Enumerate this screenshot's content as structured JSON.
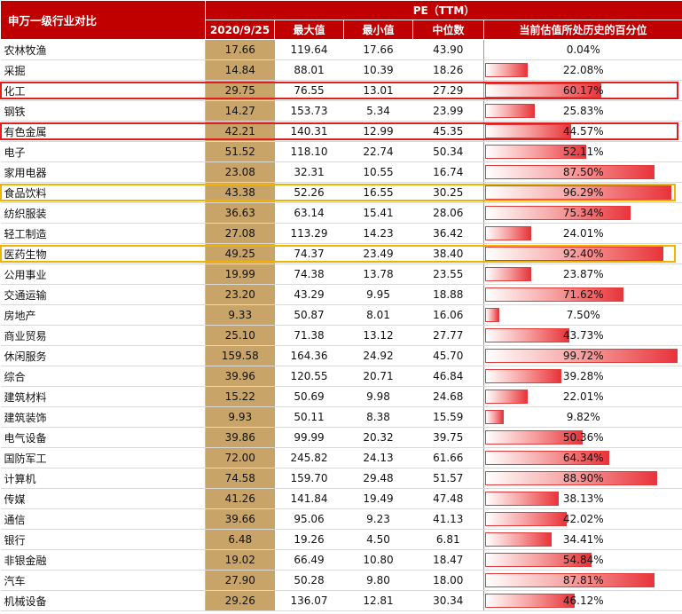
{
  "header": {
    "title": "申万一级行业对比",
    "group_label": "PE（TTM）",
    "columns": [
      "2020/9/25",
      "最大值",
      "最小值",
      "中位数",
      "当前估值所处历史的百分位"
    ]
  },
  "highlight_colors": {
    "red": "#e02020",
    "orange": "#f0b400"
  },
  "rows": [
    {
      "name": "农林牧渔",
      "cur": "17.66",
      "max": "119.64",
      "min": "17.66",
      "median": "43.90",
      "pct": "0.04%",
      "pct_value": 0.04,
      "highlight": ""
    },
    {
      "name": "采掘",
      "cur": "14.84",
      "max": "88.01",
      "min": "10.39",
      "median": "18.26",
      "pct": "22.08%",
      "pct_value": 22.08,
      "highlight": ""
    },
    {
      "name": "化工",
      "cur": "29.75",
      "max": "76.55",
      "min": "13.01",
      "median": "27.29",
      "pct": "60.17%",
      "pct_value": 60.17,
      "highlight": "red"
    },
    {
      "name": "钢铁",
      "cur": "14.27",
      "max": "153.73",
      "min": "5.34",
      "median": "23.99",
      "pct": "25.83%",
      "pct_value": 25.83,
      "highlight": ""
    },
    {
      "name": "有色金属",
      "cur": "42.21",
      "max": "140.31",
      "min": "12.99",
      "median": "45.35",
      "pct": "44.57%",
      "pct_value": 44.57,
      "highlight": "red"
    },
    {
      "name": "电子",
      "cur": "51.52",
      "max": "118.10",
      "min": "22.74",
      "median": "50.34",
      "pct": "52.11%",
      "pct_value": 52.11,
      "highlight": ""
    },
    {
      "name": "家用电器",
      "cur": "23.08",
      "max": "32.31",
      "min": "10.55",
      "median": "16.74",
      "pct": "87.50%",
      "pct_value": 87.5,
      "highlight": ""
    },
    {
      "name": "食品饮料",
      "cur": "43.38",
      "max": "52.26",
      "min": "16.55",
      "median": "30.25",
      "pct": "96.29%",
      "pct_value": 96.29,
      "highlight": "orange"
    },
    {
      "name": "纺织服装",
      "cur": "36.63",
      "max": "63.14",
      "min": "15.41",
      "median": "28.06",
      "pct": "75.34%",
      "pct_value": 75.34,
      "highlight": ""
    },
    {
      "name": "轻工制造",
      "cur": "27.08",
      "max": "113.29",
      "min": "14.23",
      "median": "36.42",
      "pct": "24.01%",
      "pct_value": 24.01,
      "highlight": ""
    },
    {
      "name": "医药生物",
      "cur": "49.25",
      "max": "74.37",
      "min": "23.49",
      "median": "38.40",
      "pct": "92.40%",
      "pct_value": 92.4,
      "highlight": "orange"
    },
    {
      "name": "公用事业",
      "cur": "19.99",
      "max": "74.38",
      "min": "13.78",
      "median": "23.55",
      "pct": "23.87%",
      "pct_value": 23.87,
      "highlight": ""
    },
    {
      "name": "交通运输",
      "cur": "23.20",
      "max": "43.29",
      "min": "9.95",
      "median": "18.88",
      "pct": "71.62%",
      "pct_value": 71.62,
      "highlight": ""
    },
    {
      "name": "房地产",
      "cur": "9.33",
      "max": "50.87",
      "min": "8.01",
      "median": "16.06",
      "pct": "7.50%",
      "pct_value": 7.5,
      "highlight": ""
    },
    {
      "name": "商业贸易",
      "cur": "25.10",
      "max": "71.38",
      "min": "13.12",
      "median": "27.77",
      "pct": "43.73%",
      "pct_value": 43.73,
      "highlight": ""
    },
    {
      "name": "休闲服务",
      "cur": "159.58",
      "max": "164.36",
      "min": "24.92",
      "median": "45.70",
      "pct": "99.72%",
      "pct_value": 99.72,
      "highlight": ""
    },
    {
      "name": "综合",
      "cur": "39.96",
      "max": "120.55",
      "min": "20.71",
      "median": "46.84",
      "pct": "39.28%",
      "pct_value": 39.28,
      "highlight": ""
    },
    {
      "name": "建筑材料",
      "cur": "15.22",
      "max": "50.69",
      "min": "9.98",
      "median": "24.68",
      "pct": "22.01%",
      "pct_value": 22.01,
      "highlight": ""
    },
    {
      "name": "建筑装饰",
      "cur": "9.93",
      "max": "50.11",
      "min": "8.38",
      "median": "15.59",
      "pct": "9.82%",
      "pct_value": 9.82,
      "highlight": ""
    },
    {
      "name": "电气设备",
      "cur": "39.86",
      "max": "99.99",
      "min": "20.32",
      "median": "39.75",
      "pct": "50.36%",
      "pct_value": 50.36,
      "highlight": ""
    },
    {
      "name": "国防军工",
      "cur": "72.00",
      "max": "245.82",
      "min": "24.13",
      "median": "61.66",
      "pct": "64.34%",
      "pct_value": 64.34,
      "highlight": ""
    },
    {
      "name": "计算机",
      "cur": "74.58",
      "max": "159.70",
      "min": "29.48",
      "median": "51.57",
      "pct": "88.90%",
      "pct_value": 88.9,
      "highlight": ""
    },
    {
      "name": "传媒",
      "cur": "41.26",
      "max": "141.84",
      "min": "19.49",
      "median": "47.48",
      "pct": "38.13%",
      "pct_value": 38.13,
      "highlight": ""
    },
    {
      "name": "通信",
      "cur": "39.66",
      "max": "95.06",
      "min": "9.23",
      "median": "41.13",
      "pct": "42.02%",
      "pct_value": 42.02,
      "highlight": ""
    },
    {
      "name": "银行",
      "cur": "6.48",
      "max": "19.26",
      "min": "4.50",
      "median": "6.81",
      "pct": "34.41%",
      "pct_value": 34.41,
      "highlight": ""
    },
    {
      "name": "非银金融",
      "cur": "19.02",
      "max": "66.49",
      "min": "10.80",
      "median": "18.47",
      "pct": "54.84%",
      "pct_value": 54.84,
      "highlight": ""
    },
    {
      "name": "汽车",
      "cur": "27.90",
      "max": "50.28",
      "min": "9.80",
      "median": "18.00",
      "pct": "87.81%",
      "pct_value": 87.81,
      "highlight": ""
    },
    {
      "name": "机械设备",
      "cur": "29.26",
      "max": "136.07",
      "min": "12.81",
      "median": "30.34",
      "pct": "46.12%",
      "pct_value": 46.12,
      "highlight": ""
    }
  ],
  "chart_data": {
    "type": "table",
    "title": "申万一级行业对比",
    "columns": [
      "申万一级行业对比",
      "2020/9/25",
      "最大值",
      "最小值",
      "中位数",
      "当前估值所处历史的百分位"
    ],
    "bar_column": "当前估值所处历史的百分位",
    "bar_range": [
      0,
      100
    ],
    "categories": [
      "农林牧渔",
      "采掘",
      "化工",
      "钢铁",
      "有色金属",
      "电子",
      "家用电器",
      "食品饮料",
      "纺织服装",
      "轻工制造",
      "医药生物",
      "公用事业",
      "交通运输",
      "房地产",
      "商业贸易",
      "休闲服务",
      "综合",
      "建筑材料",
      "建筑装饰",
      "电气设备",
      "国防军工",
      "计算机",
      "传媒",
      "通信",
      "银行",
      "非银金融",
      "汽车",
      "机械设备"
    ],
    "series": [
      {
        "name": "当前估值所处历史的百分位",
        "values": [
          0.04,
          22.08,
          60.17,
          25.83,
          44.57,
          52.11,
          87.5,
          96.29,
          75.34,
          24.01,
          92.4,
          23.87,
          71.62,
          7.5,
          43.73,
          99.72,
          39.28,
          22.01,
          9.82,
          50.36,
          64.34,
          88.9,
          38.13,
          42.02,
          34.41,
          54.84,
          87.81,
          46.12
        ]
      }
    ]
  }
}
